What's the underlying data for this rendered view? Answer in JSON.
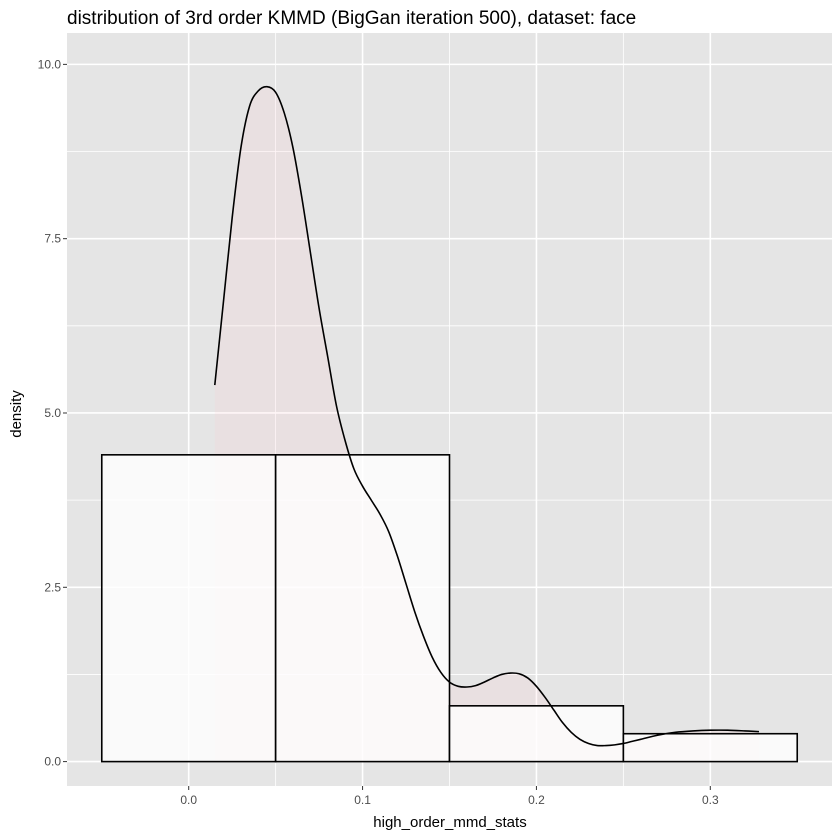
{
  "chart_data": {
    "type": "histogram",
    "title": "distribution of 3rd order KMMD (BigGan iteration 500), dataset: face",
    "xlabel": "high_order_mmd_stats",
    "ylabel": "density",
    "xlim": [
      -0.07,
      0.37
    ],
    "ylim": [
      -0.35,
      10.45
    ],
    "x_ticks": [
      0.0,
      0.1,
      0.2,
      0.3
    ],
    "x_tick_labels": [
      "0.0",
      "0.1",
      "0.2",
      "0.3"
    ],
    "y_ticks": [
      0.0,
      2.5,
      5.0,
      7.5,
      10.0
    ],
    "y_tick_labels": [
      "0.0",
      "2.5",
      "5.0",
      "7.5",
      "10.0"
    ],
    "grid": true,
    "legend": "none",
    "bins": [
      {
        "x0": -0.05,
        "x1": 0.05,
        "density": 4.4
      },
      {
        "x0": 0.05,
        "x1": 0.15,
        "density": 4.4
      },
      {
        "x0": 0.15,
        "x1": 0.25,
        "density": 0.8
      },
      {
        "x0": 0.25,
        "x1": 0.35,
        "density": 0.4
      }
    ],
    "density_curve": {
      "x": [
        0.015,
        0.02,
        0.025,
        0.03,
        0.035,
        0.04,
        0.045,
        0.05,
        0.055,
        0.06,
        0.065,
        0.07,
        0.075,
        0.08,
        0.085,
        0.09,
        0.095,
        0.1,
        0.105,
        0.11,
        0.115,
        0.12,
        0.125,
        0.13,
        0.135,
        0.14,
        0.145,
        0.15,
        0.155,
        0.16,
        0.165,
        0.17,
        0.175,
        0.18,
        0.185,
        0.19,
        0.195,
        0.2,
        0.205,
        0.21,
        0.215,
        0.22,
        0.225,
        0.23,
        0.235,
        0.24,
        0.245,
        0.25,
        0.255,
        0.26,
        0.27,
        0.28,
        0.29,
        0.3,
        0.31,
        0.32,
        0.328
      ],
      "y": [
        5.4,
        6.6,
        7.8,
        8.8,
        9.4,
        9.62,
        9.68,
        9.6,
        9.3,
        8.8,
        8.1,
        7.3,
        6.5,
        5.8,
        5.1,
        4.6,
        4.2,
        3.95,
        3.75,
        3.55,
        3.3,
        2.95,
        2.55,
        2.15,
        1.8,
        1.5,
        1.28,
        1.14,
        1.08,
        1.07,
        1.09,
        1.14,
        1.2,
        1.25,
        1.27,
        1.26,
        1.2,
        1.08,
        0.92,
        0.74,
        0.56,
        0.42,
        0.32,
        0.26,
        0.23,
        0.23,
        0.24,
        0.26,
        0.29,
        0.32,
        0.38,
        0.42,
        0.44,
        0.45,
        0.45,
        0.44,
        0.43
      ]
    },
    "colors": {
      "panel_background": "#e5e5e5",
      "grid_line": "#ffffff",
      "bar_fill": "#ffffff",
      "bar_outline": "#000000",
      "density_fill": "#ffc0cb",
      "density_line": "#000000",
      "tick_label": "#4d4d4d"
    }
  }
}
